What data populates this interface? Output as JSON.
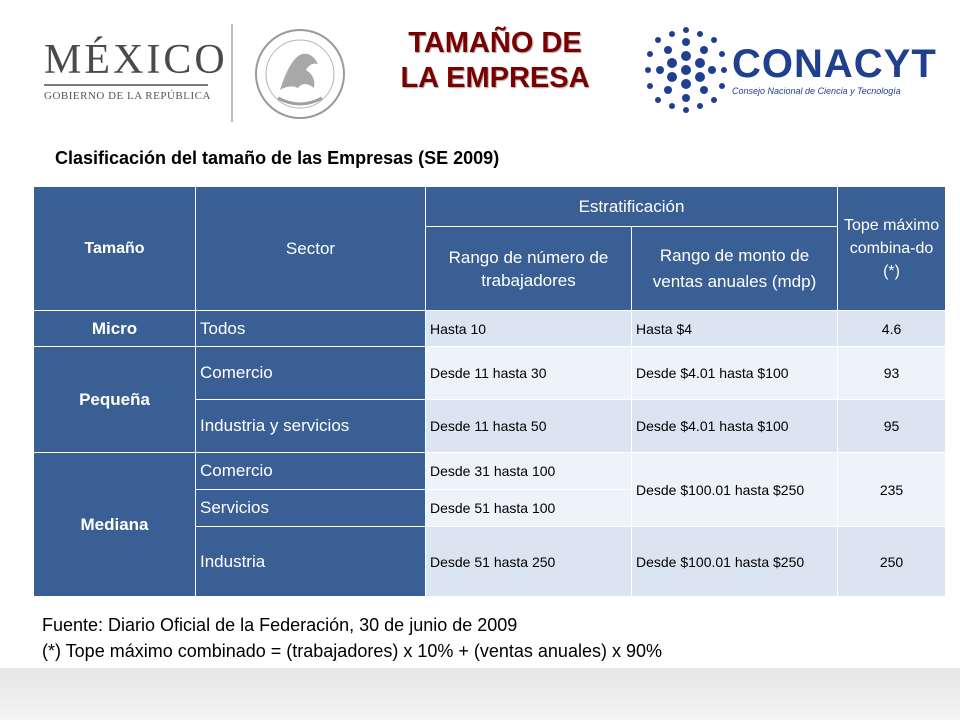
{
  "header": {
    "mexico_word": "MÉXICO",
    "mexico_sub": "GOBIERNO DE LA REPÚBLICA",
    "title_line1": "TAMAÑO DE",
    "title_line2": "LA EMPRESA",
    "conacyt_word": "CONACYT",
    "conacyt_sub": "Consejo Nacional de Ciencia y Tecnología"
  },
  "subtitle": "Clasificación del tamaño de las Empresas (SE 2009)",
  "table": {
    "col_tamano": "Tamaño",
    "col_sector": "Sector",
    "col_estratificacion": "Estratificación",
    "col_rango_trab": "Rango de número de trabajadores",
    "col_rango_ventas": "Rango de monto de ventas anuales (mdp)",
    "col_tope": "Tope máximo combina-do (*)",
    "micro": {
      "tamano": "Micro",
      "sector": "Todos",
      "trab": "Hasta 10",
      "ventas": "Hasta $4",
      "tope": "4.6"
    },
    "pequena": {
      "tamano": "Pequeña",
      "rows": [
        {
          "sector": "Comercio",
          "trab": "Desde 11 hasta 30",
          "ventas": "Desde $4.01 hasta $100",
          "tope": "93"
        },
        {
          "sector": "Industria y servicios",
          "trab": "Desde 11 hasta 50",
          "ventas": "Desde $4.01 hasta $100",
          "tope": "95"
        }
      ]
    },
    "mediana": {
      "tamano": "Mediana",
      "rows": [
        {
          "sector": "Comercio",
          "trab": "Desde 31 hasta 100"
        },
        {
          "sector": "Servicios",
          "trab": "Desde 51 hasta 100"
        },
        {
          "sector": "Industria",
          "trab": "Desde 51 hasta 250",
          "ventas": "Desde $100.01 hasta $250",
          "tope": "250"
        }
      ],
      "ventas_shared": "Desde $100.01 hasta $250",
      "tope_shared": "235"
    }
  },
  "footer": {
    "line1": "Fuente: Diario Oficial de la Federación, 30 de junio de 2009",
    "line2": "(*) Tope máximo combinado = (trabajadores) x 10% + (ventas anuales) x 90%"
  }
}
